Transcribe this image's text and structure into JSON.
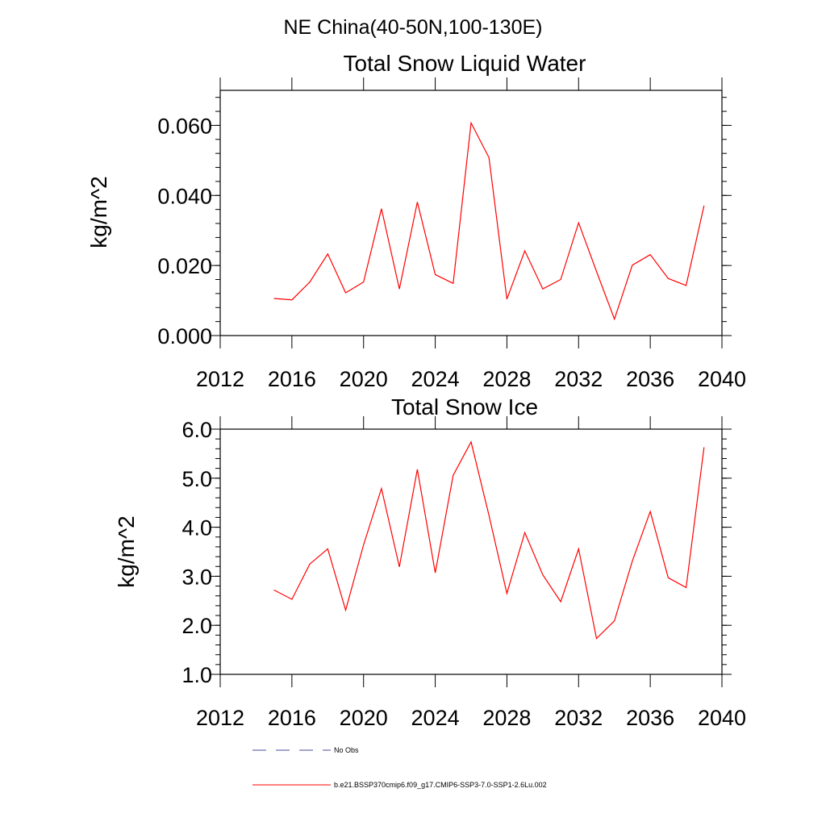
{
  "suptitle": "NE China(40-50N,100-130E)",
  "colors": {
    "model_line": "#ff0000",
    "obs_line": "#4a4a9a",
    "axes": "#000000"
  },
  "legend": [
    {
      "label": "No Obs",
      "style": "dashed",
      "color": "#4a4a9a"
    },
    {
      "label": "b.e21.BSSP370cmip6.f09_g17.CMIP6-SSP3-7.0-SSP1-2.6Lu.002",
      "style": "solid",
      "color": "#ff0000"
    }
  ],
  "chart_data": [
    {
      "type": "line",
      "title": "Total Snow Liquid Water",
      "xlabel": "",
      "ylabel": "kg/m^2",
      "xlim": [
        2012,
        2040
      ],
      "ylim": [
        0.0,
        0.07
      ],
      "xticks": [
        2012,
        2016,
        2020,
        2024,
        2028,
        2032,
        2036,
        2040
      ],
      "xtick_labels": [
        "2012",
        "2016",
        "2020",
        "2024",
        "2028",
        "2032",
        "2036",
        "2040"
      ],
      "yticks": [
        0.0,
        0.02,
        0.04,
        0.06
      ],
      "ytick_labels": [
        "0.000",
        "0.020",
        "0.040",
        "0.060"
      ],
      "grid": false,
      "x": [
        2015,
        2016,
        2017,
        2018,
        2019,
        2020,
        2021,
        2022,
        2023,
        2024,
        2025,
        2026,
        2027,
        2028,
        2029,
        2030,
        2031,
        2032,
        2033,
        2034,
        2035,
        2036,
        2037,
        2038,
        2039
      ],
      "series": [
        {
          "values": [
            0.0106,
            0.0102,
            0.0153,
            0.0233,
            0.0122,
            0.0153,
            0.0362,
            0.0133,
            0.0381,
            0.0174,
            0.0149,
            0.0607,
            0.0508,
            0.0104,
            0.0242,
            0.0133,
            0.016,
            0.0322,
            0.0183,
            0.0047,
            0.0201,
            0.0231,
            0.0163,
            0.0143,
            0.0371
          ]
        }
      ]
    },
    {
      "type": "line",
      "title": "Total Snow Ice",
      "xlabel": "",
      "ylabel": "kg/m^2",
      "xlim": [
        2012,
        2040
      ],
      "ylim": [
        1.0,
        6.0
      ],
      "xticks": [
        2012,
        2016,
        2020,
        2024,
        2028,
        2032,
        2036,
        2040
      ],
      "xtick_labels": [
        "2012",
        "2016",
        "2020",
        "2024",
        "2028",
        "2032",
        "2036",
        "2040"
      ],
      "yticks": [
        1.0,
        2.0,
        3.0,
        4.0,
        5.0,
        6.0
      ],
      "ytick_labels": [
        "1.0",
        "2.0",
        "3.0",
        "4.0",
        "5.0",
        "6.0"
      ],
      "grid": false,
      "x": [
        2015,
        2016,
        2017,
        2018,
        2019,
        2020,
        2021,
        2022,
        2023,
        2024,
        2025,
        2026,
        2027,
        2028,
        2029,
        2030,
        2031,
        2032,
        2033,
        2034,
        2035,
        2036,
        2037,
        2038,
        2039
      ],
      "series": [
        {
          "values": [
            2.72,
            2.53,
            3.25,
            3.56,
            2.31,
            3.64,
            4.79,
            3.19,
            5.18,
            3.07,
            5.06,
            5.74,
            4.24,
            2.65,
            3.89,
            3.03,
            2.48,
            3.56,
            1.73,
            2.09,
            3.31,
            4.32,
            2.97,
            2.77,
            5.63
          ]
        }
      ]
    }
  ]
}
